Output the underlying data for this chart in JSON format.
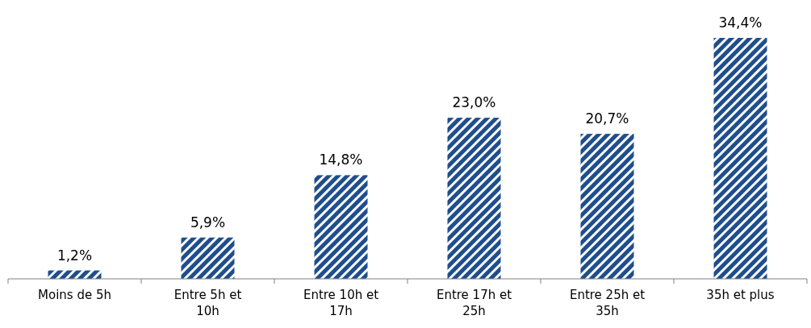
{
  "chart_data": {
    "type": "bar",
    "categories": [
      "Moins de 5h",
      "Entre 5h et 10h",
      "Entre 10h et 17h",
      "Entre 17h et 25h",
      "Entre 25h et 35h",
      "35h et plus"
    ],
    "values": [
      1.2,
      5.9,
      14.8,
      23.0,
      20.7,
      34.4
    ],
    "value_labels": [
      "1,2%",
      "5,9%",
      "14,8%",
      "23,0%",
      "20,7%",
      "34,4%"
    ],
    "color": "#1f4e8c"
  }
}
